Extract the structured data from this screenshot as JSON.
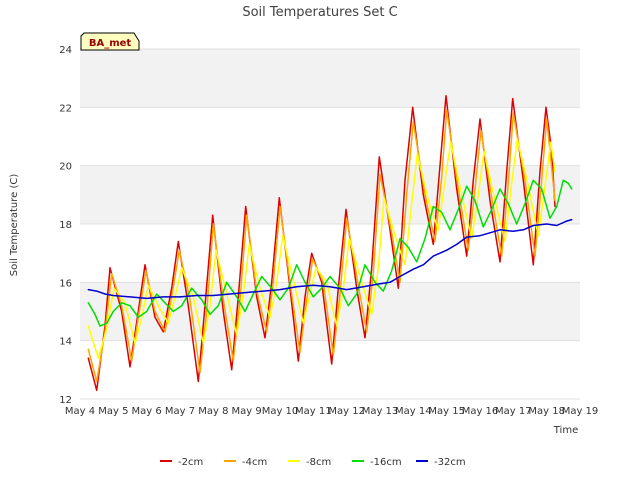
{
  "chart_data": {
    "type": "line",
    "title": "Soil Temperatures Set C",
    "xlabel": "Time",
    "ylabel": "Soil Temperature (C)",
    "ylim": [
      12,
      24
    ],
    "yticks": [
      12,
      14,
      16,
      18,
      20,
      22,
      24
    ],
    "xlim_days": [
      4,
      19
    ],
    "xticks": [
      "May 4",
      "May 5",
      "May 6",
      "May 7",
      "May 8",
      "May 9",
      "May 10",
      "May 11",
      "May 12",
      "May 13",
      "May 14",
      "May 15",
      "May 16",
      "May 17",
      "May 18",
      "May 19"
    ],
    "station_label": "BA_met",
    "grid": "horizontal",
    "band_shading": "alternating light gray bands",
    "legend_position": "bottom-center",
    "series": [
      {
        "name": "-2cm",
        "color": "#dd0000",
        "points": [
          [
            4.25,
            13.4
          ],
          [
            4.5,
            12.3
          ],
          [
            4.75,
            14.5
          ],
          [
            4.9,
            16.5
          ],
          [
            5.25,
            15.0
          ],
          [
            5.5,
            13.1
          ],
          [
            5.75,
            15.0
          ],
          [
            5.95,
            16.6
          ],
          [
            6.25,
            14.8
          ],
          [
            6.5,
            14.3
          ],
          [
            6.75,
            15.8
          ],
          [
            6.95,
            17.4
          ],
          [
            7.25,
            15.2
          ],
          [
            7.55,
            12.6
          ],
          [
            7.75,
            15.2
          ],
          [
            7.98,
            18.3
          ],
          [
            8.3,
            15.0
          ],
          [
            8.55,
            13.0
          ],
          [
            8.75,
            15.5
          ],
          [
            8.97,
            18.6
          ],
          [
            9.3,
            15.5
          ],
          [
            9.55,
            14.1
          ],
          [
            9.75,
            16.0
          ],
          [
            9.98,
            18.9
          ],
          [
            10.3,
            15.8
          ],
          [
            10.55,
            13.3
          ],
          [
            10.75,
            15.5
          ],
          [
            10.95,
            17.0
          ],
          [
            11.25,
            16.0
          ],
          [
            11.55,
            13.2
          ],
          [
            11.75,
            15.8
          ],
          [
            11.98,
            18.5
          ],
          [
            12.3,
            15.8
          ],
          [
            12.55,
            14.1
          ],
          [
            12.75,
            16.5
          ],
          [
            12.98,
            20.3
          ],
          [
            13.3,
            17.8
          ],
          [
            13.55,
            15.8
          ],
          [
            13.75,
            19.5
          ],
          [
            13.98,
            22.0
          ],
          [
            14.3,
            19.0
          ],
          [
            14.6,
            17.3
          ],
          [
            14.8,
            20.0
          ],
          [
            14.98,
            22.4
          ],
          [
            15.3,
            19.2
          ],
          [
            15.6,
            16.9
          ],
          [
            15.8,
            19.5
          ],
          [
            16.0,
            21.6
          ],
          [
            16.3,
            18.8
          ],
          [
            16.6,
            16.7
          ],
          [
            16.8,
            19.8
          ],
          [
            16.98,
            22.3
          ],
          [
            17.3,
            19.5
          ],
          [
            17.6,
            16.6
          ],
          [
            17.8,
            19.8
          ],
          [
            17.98,
            22.0
          ],
          [
            18.15,
            20.5
          ],
          [
            18.25,
            18.6
          ]
        ]
      },
      {
        "name": "-4cm",
        "color": "#ffa500",
        "points": [
          [
            4.25,
            13.7
          ],
          [
            4.5,
            12.6
          ],
          [
            4.75,
            14.3
          ],
          [
            4.95,
            16.3
          ],
          [
            5.25,
            15.2
          ],
          [
            5.55,
            13.3
          ],
          [
            5.75,
            14.8
          ],
          [
            5.98,
            16.4
          ],
          [
            6.25,
            15.0
          ],
          [
            6.55,
            14.3
          ],
          [
            6.75,
            15.5
          ],
          [
            6.98,
            17.1
          ],
          [
            7.3,
            15.4
          ],
          [
            7.6,
            12.9
          ],
          [
            7.8,
            15.0
          ],
          [
            8.0,
            18.0
          ],
          [
            8.3,
            15.4
          ],
          [
            8.6,
            13.3
          ],
          [
            8.8,
            15.4
          ],
          [
            9.0,
            18.3
          ],
          [
            9.3,
            15.7
          ],
          [
            9.6,
            14.3
          ],
          [
            9.8,
            16.0
          ],
          [
            10.0,
            18.6
          ],
          [
            10.3,
            16.0
          ],
          [
            10.6,
            13.6
          ],
          [
            10.8,
            15.4
          ],
          [
            10.98,
            16.8
          ],
          [
            11.3,
            16.0
          ],
          [
            11.6,
            13.5
          ],
          [
            11.8,
            15.6
          ],
          [
            12.0,
            18.2
          ],
          [
            12.35,
            15.9
          ],
          [
            12.6,
            14.3
          ],
          [
            12.8,
            16.3
          ],
          [
            13.0,
            19.7
          ],
          [
            13.35,
            17.7
          ],
          [
            13.6,
            16.0
          ],
          [
            13.8,
            19.0
          ],
          [
            14.0,
            21.5
          ],
          [
            14.35,
            19.0
          ],
          [
            14.65,
            17.4
          ],
          [
            14.85,
            19.6
          ],
          [
            15.0,
            21.9
          ],
          [
            15.35,
            19.2
          ],
          [
            15.65,
            17.1
          ],
          [
            15.85,
            19.2
          ],
          [
            16.03,
            21.2
          ],
          [
            16.35,
            18.9
          ],
          [
            16.65,
            16.9
          ],
          [
            16.85,
            19.4
          ],
          [
            17.0,
            21.8
          ],
          [
            17.35,
            19.5
          ],
          [
            17.65,
            16.9
          ],
          [
            17.85,
            19.5
          ],
          [
            18.0,
            21.6
          ],
          [
            18.25,
            18.8
          ]
        ]
      },
      {
        "name": "-8cm",
        "color": "#ffff00",
        "points": [
          [
            4.25,
            14.5
          ],
          [
            4.55,
            13.4
          ],
          [
            4.8,
            14.4
          ],
          [
            5.02,
            15.8
          ],
          [
            5.35,
            15.3
          ],
          [
            5.65,
            13.9
          ],
          [
            5.85,
            14.8
          ],
          [
            6.05,
            15.9
          ],
          [
            6.35,
            15.2
          ],
          [
            6.65,
            14.6
          ],
          [
            6.85,
            15.5
          ],
          [
            7.05,
            16.5
          ],
          [
            7.4,
            15.5
          ],
          [
            7.7,
            13.9
          ],
          [
            7.9,
            15.2
          ],
          [
            8.08,
            17.1
          ],
          [
            8.4,
            15.6
          ],
          [
            8.7,
            14.2
          ],
          [
            8.9,
            15.6
          ],
          [
            9.08,
            17.3
          ],
          [
            9.4,
            15.8
          ],
          [
            9.7,
            14.8
          ],
          [
            9.9,
            16.0
          ],
          [
            10.08,
            17.6
          ],
          [
            10.4,
            16.1
          ],
          [
            10.7,
            14.6
          ],
          [
            10.9,
            15.6
          ],
          [
            11.08,
            16.5
          ],
          [
            11.4,
            16.0
          ],
          [
            11.7,
            14.5
          ],
          [
            11.9,
            15.8
          ],
          [
            12.08,
            17.5
          ],
          [
            12.45,
            16.0
          ],
          [
            12.75,
            14.9
          ],
          [
            12.95,
            16.5
          ],
          [
            13.12,
            18.9
          ],
          [
            13.45,
            17.6
          ],
          [
            13.75,
            16.6
          ],
          [
            13.95,
            18.7
          ],
          [
            14.12,
            20.4
          ],
          [
            14.45,
            18.8
          ],
          [
            14.75,
            17.8
          ],
          [
            14.95,
            19.5
          ],
          [
            15.12,
            20.8
          ],
          [
            15.45,
            19.0
          ],
          [
            15.75,
            17.5
          ],
          [
            15.95,
            19.0
          ],
          [
            16.12,
            20.5
          ],
          [
            16.45,
            18.8
          ],
          [
            16.75,
            17.4
          ],
          [
            16.95,
            19.4
          ],
          [
            17.12,
            20.9
          ],
          [
            17.45,
            19.3
          ],
          [
            17.75,
            17.6
          ],
          [
            17.95,
            19.3
          ],
          [
            18.12,
            20.8
          ],
          [
            18.25,
            19.8
          ]
        ]
      },
      {
        "name": "-16cm",
        "color": "#00dd00",
        "points": [
          [
            4.25,
            15.3
          ],
          [
            4.45,
            14.9
          ],
          [
            4.6,
            14.5
          ],
          [
            4.8,
            14.6
          ],
          [
            5.0,
            15.0
          ],
          [
            5.25,
            15.3
          ],
          [
            5.5,
            15.2
          ],
          [
            5.75,
            14.8
          ],
          [
            6.0,
            15.0
          ],
          [
            6.3,
            15.6
          ],
          [
            6.55,
            15.3
          ],
          [
            6.8,
            15.0
          ],
          [
            7.05,
            15.2
          ],
          [
            7.35,
            15.8
          ],
          [
            7.65,
            15.4
          ],
          [
            7.9,
            14.9
          ],
          [
            8.15,
            15.2
          ],
          [
            8.4,
            16.0
          ],
          [
            8.7,
            15.5
          ],
          [
            8.95,
            15.0
          ],
          [
            9.2,
            15.6
          ],
          [
            9.45,
            16.2
          ],
          [
            9.75,
            15.8
          ],
          [
            10.0,
            15.4
          ],
          [
            10.25,
            15.8
          ],
          [
            10.5,
            16.6
          ],
          [
            10.75,
            16.0
          ],
          [
            11.0,
            15.5
          ],
          [
            11.25,
            15.8
          ],
          [
            11.5,
            16.2
          ],
          [
            11.8,
            15.8
          ],
          [
            12.05,
            15.2
          ],
          [
            12.3,
            15.6
          ],
          [
            12.55,
            16.6
          ],
          [
            12.85,
            16.0
          ],
          [
            13.1,
            15.7
          ],
          [
            13.35,
            16.4
          ],
          [
            13.6,
            17.5
          ],
          [
            13.85,
            17.2
          ],
          [
            14.1,
            16.7
          ],
          [
            14.35,
            17.5
          ],
          [
            14.6,
            18.6
          ],
          [
            14.85,
            18.4
          ],
          [
            15.1,
            17.8
          ],
          [
            15.35,
            18.5
          ],
          [
            15.6,
            19.3
          ],
          [
            15.85,
            18.8
          ],
          [
            16.1,
            17.9
          ],
          [
            16.35,
            18.5
          ],
          [
            16.6,
            19.2
          ],
          [
            16.85,
            18.7
          ],
          [
            17.1,
            18.0
          ],
          [
            17.35,
            18.7
          ],
          [
            17.6,
            19.5
          ],
          [
            17.85,
            19.2
          ],
          [
            18.1,
            18.2
          ],
          [
            18.3,
            18.6
          ],
          [
            18.5,
            19.5
          ],
          [
            18.65,
            19.4
          ],
          [
            18.75,
            19.2
          ]
        ]
      },
      {
        "name": "-32cm",
        "color": "#0000cc",
        "points": [
          [
            4.25,
            15.75
          ],
          [
            4.5,
            15.7
          ],
          [
            4.75,
            15.6
          ],
          [
            5.0,
            15.55
          ],
          [
            5.5,
            15.5
          ],
          [
            6.0,
            15.45
          ],
          [
            6.5,
            15.5
          ],
          [
            7.0,
            15.5
          ],
          [
            7.5,
            15.55
          ],
          [
            8.0,
            15.55
          ],
          [
            8.5,
            15.6
          ],
          [
            9.0,
            15.65
          ],
          [
            9.5,
            15.7
          ],
          [
            10.0,
            15.75
          ],
          [
            10.5,
            15.85
          ],
          [
            11.0,
            15.9
          ],
          [
            11.5,
            15.85
          ],
          [
            12.0,
            15.75
          ],
          [
            12.5,
            15.85
          ],
          [
            13.0,
            15.95
          ],
          [
            13.3,
            16.0
          ],
          [
            13.6,
            16.2
          ],
          [
            14.0,
            16.45
          ],
          [
            14.3,
            16.6
          ],
          [
            14.6,
            16.9
          ],
          [
            15.0,
            17.1
          ],
          [
            15.3,
            17.3
          ],
          [
            15.6,
            17.55
          ],
          [
            16.0,
            17.6
          ],
          [
            16.3,
            17.7
          ],
          [
            16.6,
            17.8
          ],
          [
            17.0,
            17.75
          ],
          [
            17.3,
            17.8
          ],
          [
            17.6,
            17.95
          ],
          [
            18.0,
            18.0
          ],
          [
            18.3,
            17.95
          ],
          [
            18.6,
            18.1
          ],
          [
            18.75,
            18.15
          ]
        ]
      }
    ]
  }
}
